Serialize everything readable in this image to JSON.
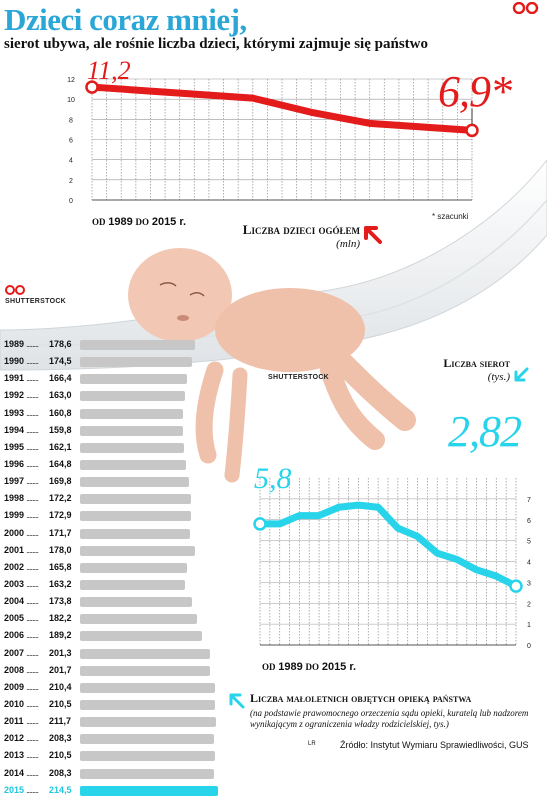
{
  "header": {
    "title": "Dzieci coraz mniej,",
    "subtitle": "sierot ubywa, ale rośnie liczba dzieci, którymi zajmuje się państwo"
  },
  "credits": {
    "photo_left": "SHUTTERSTOCK",
    "photo_center": "SHUTTERSTOCK"
  },
  "footnote": "* szacunki",
  "source": "Źródło: Instytut Wymiaru Sprawiedliwości, GUS",
  "author": "LR",
  "colors": {
    "title": "#2aa7d6",
    "kids_line": "#e31b1b",
    "orphans_line": "#27d4ea",
    "bars": "#c7c7c7",
    "bar_highlight": "#27d4ea"
  },
  "icons": {
    "kids_arrow": "arrow-up-left-icon",
    "orphans_arrow": "arrow-down-left-icon",
    "care_arrow": "arrow-up-left-icon"
  },
  "labels": {
    "kids": {
      "title": "Liczba dzieci ogółem",
      "unit": "(mln)",
      "range_from": "od",
      "range_from_year": "1989",
      "range_to": "do",
      "range_to_year": "2015 r."
    },
    "orphans": {
      "title": "Liczba sierot",
      "unit": "(tys.)",
      "range_from": "od",
      "range_from_year": "1989",
      "range_to": "do",
      "range_to_year": "2015 r."
    },
    "care": {
      "title": "Liczba małoletnich objętych opieką państwa",
      "note": "(na podstawie prawomocnego orzeczenia sądu opieki, kuratelą lub nadzorem wynikającym z ograniczenia władzy rodzicielskiej, tys.)"
    }
  },
  "callouts": {
    "kids_start": "11,2",
    "kids_end": "6,9*",
    "orphans_start": "5,8",
    "orphans_end": "2,82"
  },
  "chart_data": [
    {
      "type": "line",
      "title": "Liczba dzieci ogółem",
      "ylabel": "(mln)",
      "x_range": [
        1989,
        2015
      ],
      "ylim": [
        0,
        12
      ],
      "y_ticks": [
        "0",
        "2",
        "4",
        "6",
        "8",
        "10",
        "12"
      ],
      "grid": true,
      "x": [
        1989,
        1993,
        1996,
        2000,
        2004,
        2008,
        2012,
        2015
      ],
      "series": [
        {
          "values": [
            11.2,
            10.8,
            10.5,
            10.1,
            8.7,
            7.6,
            7.2,
            6.9
          ]
        }
      ]
    },
    {
      "type": "line",
      "title": "Liczba sierot",
      "ylabel": "(tys.)",
      "x_range": [
        1989,
        2015
      ],
      "ylim": [
        0,
        8
      ],
      "y_ticks": [
        "0",
        "1",
        "2",
        "3",
        "4",
        "5",
        "6",
        "7"
      ],
      "grid": true,
      "x": [
        1989,
        1991,
        1993,
        1995,
        1997,
        1999,
        2001,
        2003,
        2005,
        2007,
        2009,
        2011,
        2013,
        2015
      ],
      "series": [
        {
          "values": [
            5.8,
            5.8,
            6.2,
            6.2,
            6.6,
            6.7,
            6.6,
            5.6,
            5.2,
            4.4,
            4.1,
            3.6,
            3.3,
            2.82
          ]
        }
      ]
    },
    {
      "type": "bar",
      "title": "Liczba małoletnich objętych opieką państwa",
      "categories": [
        "1989",
        "1990",
        "1991",
        "1992",
        "1993",
        "1994",
        "1995",
        "1996",
        "1997",
        "1998",
        "1999",
        "2000",
        "2001",
        "2002",
        "2003",
        "2004",
        "2005",
        "2006",
        "2007",
        "2008",
        "2009",
        "2010",
        "2011",
        "2012",
        "2013",
        "2014",
        "2015"
      ],
      "value_labels": [
        "178,6",
        "174,5",
        "166,4",
        "163,0",
        "160,8",
        "159,8",
        "162,1",
        "164,8",
        "169,8",
        "172,2",
        "172,9",
        "171,7",
        "178,0",
        "165,8",
        "163,2",
        "173,8",
        "182,2",
        "189,2",
        "201,3",
        "201,7",
        "210,4",
        "210,5",
        "211,7",
        "208,3",
        "210,5",
        "208,3",
        "214,5"
      ],
      "values": [
        178.6,
        174.5,
        166.4,
        163.0,
        160.8,
        159.8,
        162.1,
        164.8,
        169.8,
        172.2,
        172.9,
        171.7,
        178.0,
        165.8,
        163.2,
        173.8,
        182.2,
        189.2,
        201.3,
        201.7,
        210.4,
        210.5,
        211.7,
        208.3,
        210.5,
        208.3,
        214.5
      ],
      "highlight": "2015"
    }
  ]
}
